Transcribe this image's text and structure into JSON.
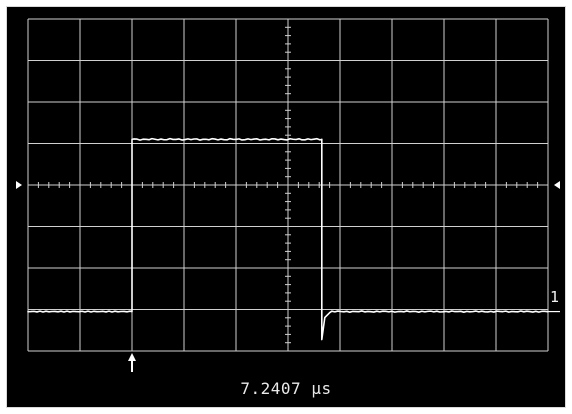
{
  "screen": {
    "background_color": "#000000",
    "border_color": "#d9d9d9",
    "grid_color": "#d0d0d0",
    "trace_color": "#ffffff"
  },
  "grid": {
    "columns": 10,
    "rows": 8
  },
  "channel": {
    "label": "1"
  },
  "readout": {
    "time_text": "7.2407 µs"
  },
  "markers": {
    "left_level_marker_icon": "right-triangle-icon",
    "right_level_marker_icon": "left-triangle-icon",
    "trigger_marker_icon": "up-arrow-icon"
  },
  "trace": {
    "low_level_div": -3.05,
    "high_level_div": 1.1,
    "rise_at_div": 2.0,
    "fall_at_div": 5.65
  }
}
